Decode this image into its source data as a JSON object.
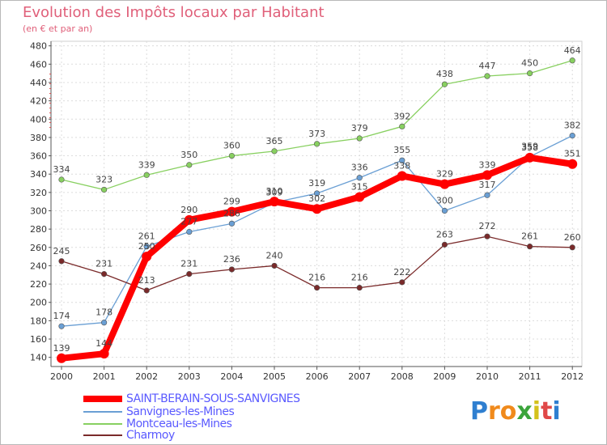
{
  "chart_data": {
    "type": "line",
    "title": "Evolution des Impôts locaux par Habitant",
    "subtitle": "(en € et par an)",
    "xlabel": "",
    "ylabel": "",
    "ylim": [
      130,
      485
    ],
    "yticks": [
      140,
      160,
      180,
      200,
      220,
      240,
      260,
      280,
      300,
      320,
      340,
      360,
      380,
      400,
      420,
      440,
      460,
      480
    ],
    "categories": [
      "2000",
      "2001",
      "2002",
      "2003",
      "2004",
      "2005",
      "2006",
      "2007",
      "2008",
      "2009",
      "2010",
      "2011",
      "2012"
    ],
    "grid": true,
    "legend_position": "bottom-left",
    "series": [
      {
        "name": "SAINT-BERAIN-SOUS-SANVIGNES",
        "color": "#ff0000",
        "values": [
          139,
          144,
          250,
          290,
          299,
          310,
          302,
          315,
          338,
          329,
          339,
          358,
          351
        ]
      },
      {
        "name": "Sanvignes-les-Mines",
        "color": "#6a9fd4",
        "values": [
          174,
          178,
          261,
          277,
          286,
          309,
          319,
          336,
          355,
          300,
          317,
          359,
          382
        ]
      },
      {
        "name": "Montceau-les-Mines",
        "color": "#88d060",
        "values": [
          334,
          323,
          339,
          350,
          360,
          365,
          373,
          379,
          392,
          438,
          447,
          450,
          464
        ]
      },
      {
        "name": "Charmoy",
        "color": "#7a2a2a",
        "values": [
          245,
          231,
          213,
          231,
          236,
          240,
          216,
          216,
          222,
          263,
          272,
          261,
          260
        ]
      }
    ]
  },
  "branding": {
    "letters": [
      "P",
      "r",
      "o",
      "x",
      "i",
      "t",
      "i"
    ],
    "colors": [
      "#2f7fd0",
      "#f08a1c",
      "#f08a1c",
      "#3aa43a",
      "#d4c21c",
      "#e04848",
      "#2f7fd0"
    ]
  }
}
